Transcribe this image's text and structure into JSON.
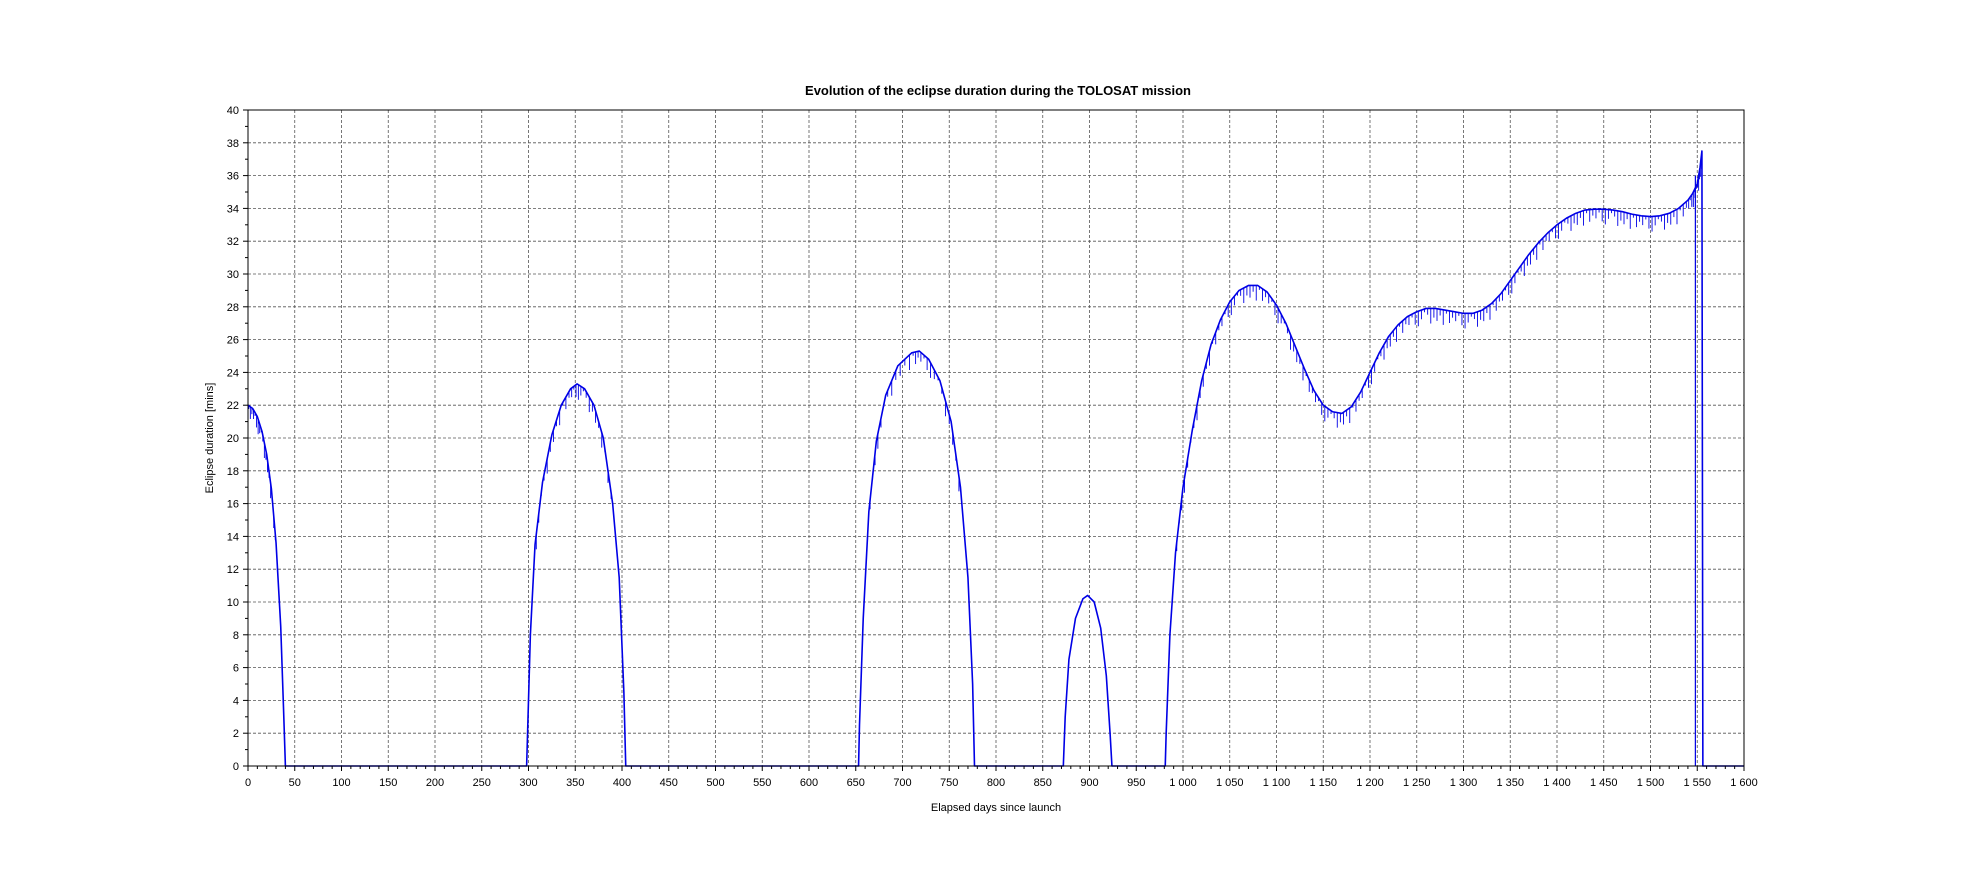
{
  "chart_data": {
    "type": "line",
    "title": "Evolution of the eclipse duration during the TOLOSAT mission",
    "xlabel": "Elapsed days since launch",
    "ylabel": "Eclipse duration [mins]",
    "xlim": [
      0,
      1600
    ],
    "ylim": [
      0,
      40
    ],
    "grid": true,
    "x_ticks": [
      0,
      50,
      100,
      150,
      200,
      250,
      300,
      350,
      400,
      450,
      500,
      550,
      600,
      650,
      700,
      750,
      800,
      850,
      900,
      950,
      1000,
      1050,
      1100,
      1150,
      1200,
      1250,
      1300,
      1350,
      1400,
      1450,
      1500,
      1550,
      1600
    ],
    "x_tick_labels": [
      "0",
      "50",
      "100",
      "150",
      "200",
      "250",
      "300",
      "350",
      "400",
      "450",
      "500",
      "550",
      "600",
      "650",
      "700",
      "750",
      "800",
      "850",
      "900",
      "950",
      "1 000",
      "1 050",
      "1 100",
      "1 150",
      "1 200",
      "1 250",
      "1 300",
      "1 350",
      "1 400",
      "1 450",
      "1 500",
      "1 550",
      "1 600"
    ],
    "y_ticks": [
      0,
      2,
      4,
      6,
      8,
      10,
      12,
      14,
      16,
      18,
      20,
      22,
      24,
      26,
      28,
      30,
      32,
      34,
      36,
      38,
      40
    ],
    "y_tick_labels": [
      "0",
      "2",
      "4",
      "6",
      "8",
      "10",
      "12",
      "14",
      "16",
      "18",
      "20",
      "22",
      "24",
      "26",
      "28",
      "30",
      "32",
      "34",
      "36",
      "38",
      "40"
    ],
    "series": [
      {
        "color": "#0000e6",
        "points": [
          [
            0,
            22.0
          ],
          [
            5,
            21.8
          ],
          [
            10,
            21.3
          ],
          [
            15,
            20.4
          ],
          [
            20,
            19.0
          ],
          [
            25,
            16.9
          ],
          [
            30,
            13.6
          ],
          [
            35,
            8.5
          ],
          [
            38,
            3.5
          ],
          [
            40,
            0.0
          ],
          [
            60,
            0.0
          ],
          [
            120,
            0.0
          ],
          [
            180,
            0.0
          ],
          [
            240,
            0.0
          ],
          [
            298,
            0.0
          ],
          [
            299,
            2.0
          ],
          [
            302,
            8.0
          ],
          [
            307,
            13.5
          ],
          [
            315,
            17.3
          ],
          [
            325,
            20.2
          ],
          [
            335,
            22.0
          ],
          [
            345,
            23.0
          ],
          [
            352,
            23.3
          ],
          [
            360,
            23.0
          ],
          [
            370,
            22.0
          ],
          [
            380,
            20.0
          ],
          [
            390,
            16.0
          ],
          [
            397,
            11.5
          ],
          [
            402,
            4.5
          ],
          [
            404,
            0.0
          ],
          [
            450,
            0.0
          ],
          [
            520,
            0.0
          ],
          [
            590,
            0.0
          ],
          [
            653,
            0.0
          ],
          [
            654,
            2.5
          ],
          [
            658,
            9.0
          ],
          [
            664,
            15.5
          ],
          [
            672,
            19.8
          ],
          [
            682,
            22.6
          ],
          [
            695,
            24.4
          ],
          [
            710,
            25.2
          ],
          [
            718,
            25.3
          ],
          [
            728,
            24.8
          ],
          [
            740,
            23.5
          ],
          [
            752,
            21.0
          ],
          [
            762,
            17.0
          ],
          [
            770,
            11.5
          ],
          [
            775,
            5.0
          ],
          [
            777,
            0.0
          ],
          [
            810,
            0.0
          ],
          [
            855,
            0.0
          ],
          [
            872,
            0.0
          ],
          [
            874,
            3.0
          ],
          [
            878,
            6.5
          ],
          [
            885,
            9.0
          ],
          [
            893,
            10.2
          ],
          [
            898,
            10.4
          ],
          [
            905,
            10.0
          ],
          [
            912,
            8.4
          ],
          [
            918,
            5.5
          ],
          [
            922,
            2.0
          ],
          [
            924,
            0.0
          ],
          [
            950,
            0.0
          ],
          [
            981,
            0.0
          ],
          [
            982,
            2.0
          ],
          [
            986,
            8.0
          ],
          [
            992,
            13.0
          ],
          [
            1000,
            17.0
          ],
          [
            1010,
            20.5
          ],
          [
            1020,
            23.5
          ],
          [
            1030,
            25.7
          ],
          [
            1040,
            27.2
          ],
          [
            1050,
            28.3
          ],
          [
            1060,
            29.0
          ],
          [
            1070,
            29.3
          ],
          [
            1080,
            29.3
          ],
          [
            1090,
            28.9
          ],
          [
            1100,
            28.1
          ],
          [
            1110,
            27.0
          ],
          [
            1120,
            25.6
          ],
          [
            1130,
            24.2
          ],
          [
            1140,
            22.9
          ],
          [
            1150,
            22.0
          ],
          [
            1160,
            21.6
          ],
          [
            1170,
            21.5
          ],
          [
            1180,
            21.9
          ],
          [
            1190,
            22.8
          ],
          [
            1200,
            24.0
          ],
          [
            1210,
            25.2
          ],
          [
            1220,
            26.2
          ],
          [
            1230,
            26.9
          ],
          [
            1240,
            27.4
          ],
          [
            1250,
            27.7
          ],
          [
            1260,
            27.9
          ],
          [
            1270,
            27.9
          ],
          [
            1280,
            27.8
          ],
          [
            1290,
            27.7
          ],
          [
            1300,
            27.6
          ],
          [
            1310,
            27.6
          ],
          [
            1320,
            27.8
          ],
          [
            1330,
            28.2
          ],
          [
            1340,
            28.8
          ],
          [
            1350,
            29.6
          ],
          [
            1360,
            30.4
          ],
          [
            1370,
            31.2
          ],
          [
            1380,
            31.9
          ],
          [
            1390,
            32.5
          ],
          [
            1400,
            33.0
          ],
          [
            1410,
            33.4
          ],
          [
            1420,
            33.7
          ],
          [
            1430,
            33.9
          ],
          [
            1440,
            33.95
          ],
          [
            1450,
            33.95
          ],
          [
            1460,
            33.9
          ],
          [
            1470,
            33.8
          ],
          [
            1480,
            33.65
          ],
          [
            1490,
            33.55
          ],
          [
            1500,
            33.5
          ],
          [
            1510,
            33.55
          ],
          [
            1520,
            33.7
          ],
          [
            1530,
            34.0
          ],
          [
            1540,
            34.5
          ],
          [
            1545,
            34.9
          ],
          [
            1550,
            35.5
          ],
          [
            1553,
            36.5
          ],
          [
            1555,
            37.5
          ],
          [
            1556,
            0.0
          ],
          [
            1600,
            0.0
          ]
        ]
      }
    ],
    "spikes": [
      [
        1548,
        0.0,
        36.0
      ]
    ]
  }
}
